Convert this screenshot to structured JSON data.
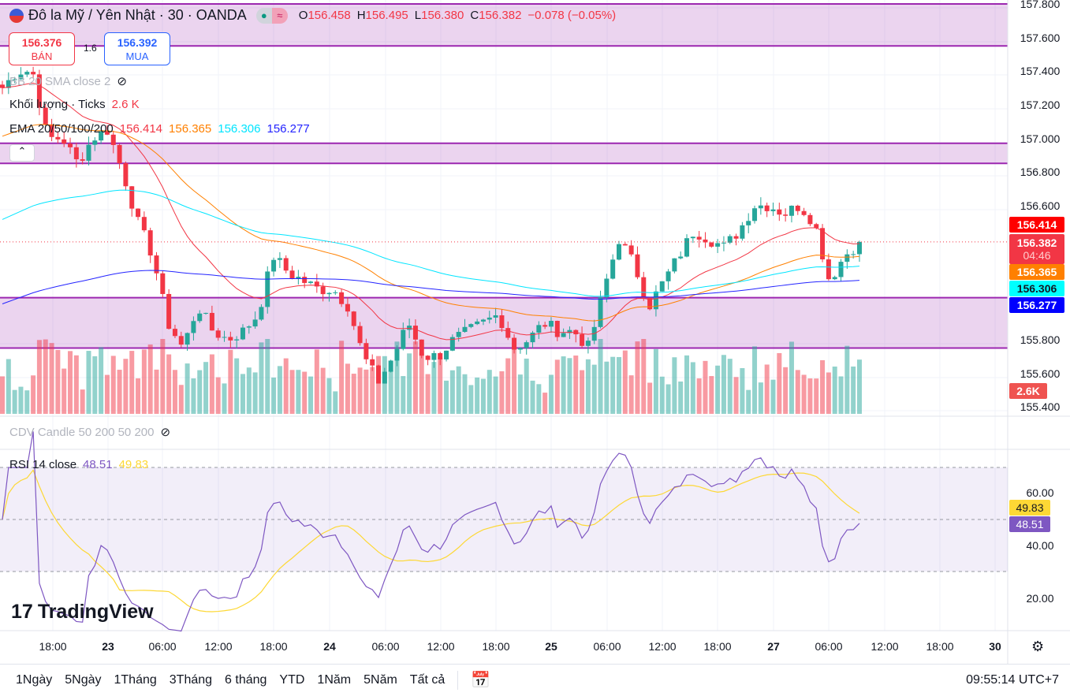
{
  "header": {
    "title": "Đô la Mỹ / Yên Nhật · 30 · OANDA",
    "o_label": "O",
    "o": "156.458",
    "h_label": "H",
    "h": "156.495",
    "l_label": "L",
    "l": "156.380",
    "c_label": "C",
    "c": "156.382",
    "change": "−0.078 (−0.05%)"
  },
  "trade": {
    "sell_price": "156.376",
    "sell_label": "BÁN",
    "spread": "1.6",
    "buy_price": "156.392",
    "buy_label": "MUA"
  },
  "legends": {
    "bb": "BB 20 SMA close 2",
    "volume_label": "Khối lượng · Ticks",
    "volume_value": "2.6 K",
    "ema_label": "EMA 20/50/100/200",
    "ema20": "156.414",
    "ema50": "156.365",
    "ema100": "156.306",
    "ema200": "156.277",
    "cdv": "CDV Candle 50 200 50 200",
    "rsi_label": "RSI 14 close",
    "rsi": "48.51",
    "rsi_ma": "49.83"
  },
  "price_axis": {
    "ticks": [
      "157.800",
      "157.600",
      "157.400",
      "157.200",
      "157.000",
      "156.800",
      "156.600",
      "155.800",
      "155.600",
      "155.400"
    ],
    "badges": {
      "ema20": "156.414",
      "last": "156.382",
      "countdown": "04:46",
      "ema50": "156.365",
      "ema100": "156.306",
      "ema200": "156.277",
      "volume": "2.6K"
    }
  },
  "rsi_axis": {
    "ticks": [
      "60.00",
      "40.00",
      "20.00"
    ],
    "rsi": "48.51",
    "rsi_ma": "49.83"
  },
  "time_axis": [
    "18:00",
    "23",
    "06:00",
    "12:00",
    "18:00",
    "24",
    "06:00",
    "12:00",
    "18:00",
    "25",
    "06:00",
    "12:00",
    "18:00",
    "27",
    "06:00",
    "12:00",
    "18:00",
    "30"
  ],
  "toolbar": {
    "ranges": [
      "1Ngày",
      "5Ngày",
      "1Tháng",
      "3Tháng",
      "6 tháng",
      "YTD",
      "1Năm",
      "5Năm",
      "Tất cả"
    ],
    "clock": "09:55:14 UTC+7"
  },
  "logo": "TradingView",
  "colors": {
    "up": "#26a69a",
    "down": "#f23645",
    "ema20": "#f23645",
    "ema50": "#ff8000",
    "ema100": "#00e5ff",
    "ema200": "#2424ff",
    "zone": "#9c27b0",
    "rsi": "#7e57c2",
    "rsi_ma": "#fdd835"
  },
  "chart_data": {
    "type": "candlestick",
    "approx_close_path": [
      157.3,
      157.4,
      157.4,
      157.0,
      157.0,
      156.85,
      157.0,
      157.05,
      156.8,
      156.5,
      156.3,
      155.9,
      155.75,
      156.0,
      155.85,
      155.8,
      155.85,
      155.95,
      156.3,
      156.2,
      156.15,
      156.1,
      156.1,
      156.0,
      155.7,
      155.55,
      155.7,
      155.9,
      155.7,
      155.7,
      155.8,
      155.85,
      155.9,
      155.95,
      155.75,
      155.8,
      155.9,
      155.85,
      155.85,
      155.75,
      156.1,
      156.4,
      156.25,
      156.0,
      156.15,
      156.3,
      156.45,
      156.4,
      156.35,
      156.45,
      156.6,
      156.6,
      156.55,
      156.6,
      156.5,
      156.15,
      156.3,
      156.382
    ],
    "zones": [
      [
        157.55,
        157.8
      ],
      [
        156.85,
        156.97
      ],
      [
        155.75,
        156.05
      ]
    ]
  }
}
